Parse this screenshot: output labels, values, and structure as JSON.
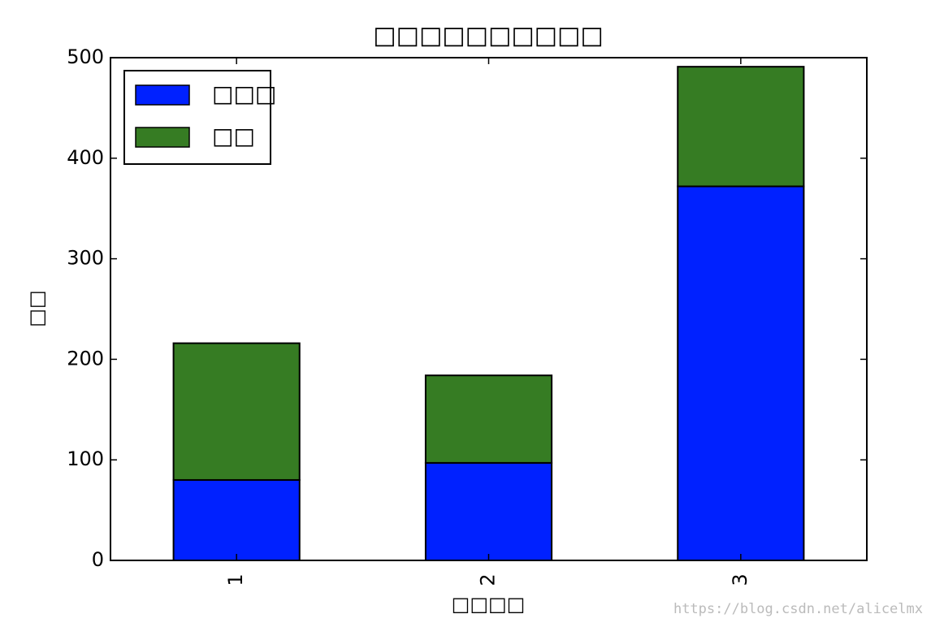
{
  "chart_data": {
    "type": "stacked_bar",
    "title": "□□□□□□□□□□",
    "x_label": "□□□□",
    "y_label": "□□",
    "categories": [
      "1",
      "2",
      "3"
    ],
    "series": [
      {
        "name": "□□□",
        "color": "#0021ff",
        "values": [
          80,
          97,
          372
        ]
      },
      {
        "name": "□□",
        "color": "#367c23",
        "values": [
          136,
          87,
          119
        ]
      }
    ],
    "ylim": [
      0,
      500
    ],
    "yticks": [
      0,
      100,
      200,
      300,
      400,
      500
    ],
    "legend": "upper left",
    "watermark": "https://blog.csdn.net/alicelmx"
  }
}
